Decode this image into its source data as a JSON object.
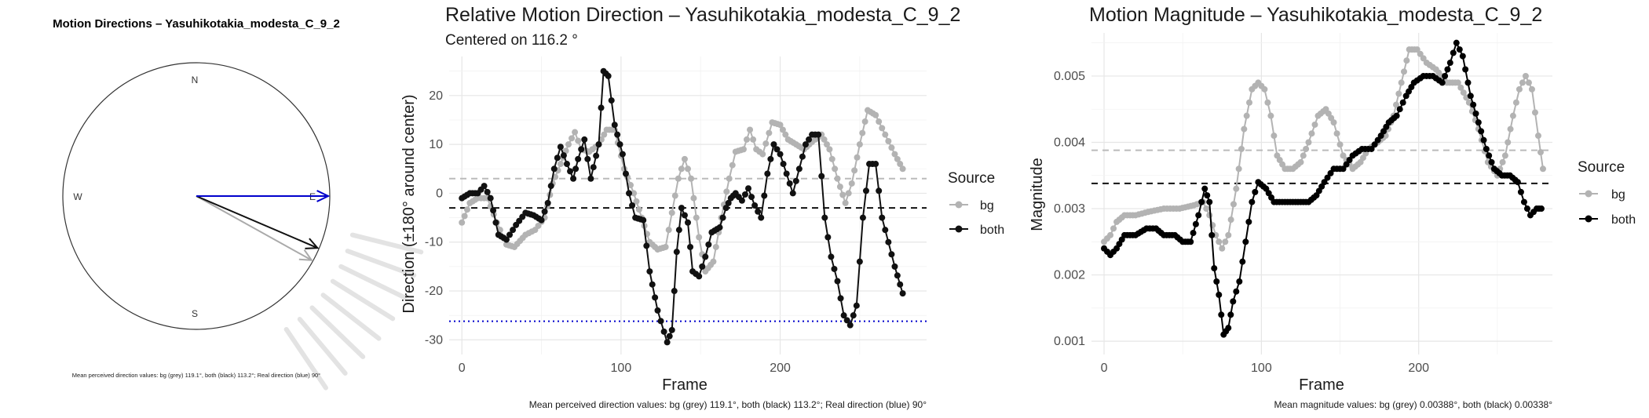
{
  "chart_data": [
    {
      "type": "compass",
      "title": "Motion Directions – Yasuhikotakia_modesta_C_9_2",
      "cardinals": [
        "N",
        "E",
        "S",
        "W"
      ],
      "arrows": [
        {
          "name": "bg",
          "angle_deg": 119.1,
          "color": "#aaaaaa"
        },
        {
          "name": "both",
          "angle_deg": 113.2,
          "color": "#111111"
        },
        {
          "name": "real",
          "angle_deg": 90,
          "color": "#0000cc"
        }
      ],
      "caption": "Mean perceived direction values: bg (grey) 119.1°, both (black) 113.2°; Real direction (blue) 90°"
    },
    {
      "type": "line",
      "title": "Relative Motion Direction – Yasuhikotakia_modesta_C_9_2",
      "subtitle": "Centered on  116.2 °",
      "xlabel": "Frame",
      "ylabel": "Direction (±180° around center)",
      "xlim": [
        -8,
        292
      ],
      "ylim": [
        -33,
        28
      ],
      "xticks": [
        0,
        100,
        200
      ],
      "yticks": [
        -30,
        -20,
        -10,
        0,
        10,
        20
      ],
      "legend_title": "Source",
      "series": [
        {
          "name": "bg",
          "color": "#b3b3b3",
          "points": [
            [
              0,
              -6
            ],
            [
              5,
              -2
            ],
            [
              10,
              -1
            ],
            [
              16,
              -1
            ],
            [
              22,
              -6
            ],
            [
              28,
              -10.5
            ],
            [
              33,
              -11
            ],
            [
              40,
              -8.5
            ],
            [
              46,
              -7.5
            ],
            [
              52,
              -5
            ],
            [
              57,
              2
            ],
            [
              62,
              6
            ],
            [
              67,
              10
            ],
            [
              71,
              12.5
            ],
            [
              75,
              9
            ],
            [
              80,
              8.5
            ],
            [
              86,
              10
            ],
            [
              91,
              13
            ],
            [
              96,
              13
            ],
            [
              102,
              5
            ],
            [
              108,
              0
            ],
            [
              113,
              -5
            ],
            [
              118,
              -10
            ],
            [
              123,
              -11.5
            ],
            [
              128,
              -11
            ],
            [
              132,
              -4
            ],
            [
              136,
              3
            ],
            [
              140,
              7
            ],
            [
              144,
              3
            ],
            [
              149,
              -9
            ],
            [
              153,
              -16
            ],
            [
              158,
              -14
            ],
            [
              163,
              -5
            ],
            [
              168,
              3
            ],
            [
              172,
              8.5
            ],
            [
              177,
              9
            ],
            [
              181,
              13
            ],
            [
              185,
              9
            ],
            [
              189,
              8
            ],
            [
              195,
              14.5
            ],
            [
              200,
              14
            ],
            [
              205,
              11
            ],
            [
              210,
              10
            ],
            [
              215,
              9
            ],
            [
              220,
              10.5
            ],
            [
              226,
              12
            ],
            [
              231,
              9
            ],
            [
              236,
              3
            ],
            [
              241,
              -2
            ],
            [
              245,
              2
            ],
            [
              250,
              10
            ],
            [
              255,
              17
            ],
            [
              260,
              16
            ],
            [
              266,
              12
            ],
            [
              272,
              8
            ],
            [
              277,
              5
            ]
          ]
        },
        {
          "name": "both",
          "color": "#111111",
          "points": [
            [
              0,
              -1
            ],
            [
              5,
              0
            ],
            [
              10,
              0
            ],
            [
              14,
              1.5
            ],
            [
              18,
              -1
            ],
            [
              23,
              -8.5
            ],
            [
              28,
              -9.5
            ],
            [
              34,
              -6.5
            ],
            [
              40,
              -4
            ],
            [
              45,
              -4.5
            ],
            [
              50,
              -5.5
            ],
            [
              54,
              -2
            ],
            [
              58,
              5
            ],
            [
              62,
              9.5
            ],
            [
              66,
              6
            ],
            [
              70,
              3
            ],
            [
              73,
              7
            ],
            [
              77,
              11
            ],
            [
              81,
              3
            ],
            [
              86,
              10
            ],
            [
              89,
              25
            ],
            [
              92,
              24
            ],
            [
              96,
              14
            ],
            [
              101,
              8
            ],
            [
              105,
              0
            ],
            [
              109,
              -5
            ],
            [
              114,
              -5.5
            ],
            [
              118,
              -16
            ],
            [
              123,
              -24
            ],
            [
              129,
              -30.5
            ],
            [
              132,
              -28
            ],
            [
              135,
              -12
            ],
            [
              138,
              -3
            ],
            [
              142,
              -6
            ],
            [
              145,
              -16
            ],
            [
              149,
              -17
            ],
            [
              153,
              -13
            ],
            [
              157,
              -8
            ],
            [
              162,
              -7
            ],
            [
              166,
              -3
            ],
            [
              169,
              -1
            ],
            [
              172,
              0
            ],
            [
              176,
              -1.5
            ],
            [
              180,
              1
            ],
            [
              184,
              -2.5
            ],
            [
              188,
              -5
            ],
            [
              192,
              4
            ],
            [
              196,
              10
            ],
            [
              200,
              8
            ],
            [
              204,
              4
            ],
            [
              208,
              0
            ],
            [
              212,
              5
            ],
            [
              216,
              10
            ],
            [
              220,
              12
            ],
            [
              224,
              12
            ],
            [
              228,
              -5
            ],
            [
              232,
              -13
            ],
            [
              236,
              -18
            ],
            [
              240,
              -25
            ],
            [
              244,
              -27
            ],
            [
              248,
              -23
            ],
            [
              252,
              -5
            ],
            [
              256,
              6
            ],
            [
              260,
              6
            ],
            [
              264,
              -5
            ],
            [
              268,
              -10
            ],
            [
              272,
              -15
            ],
            [
              277,
              -20.5
            ]
          ]
        }
      ],
      "hlines": [
        {
          "name": "bg mean",
          "y": 3,
          "color": "#bbbbbb",
          "style": "dashed"
        },
        {
          "name": "both mean",
          "y": -3,
          "color": "#111111",
          "style": "dashed"
        },
        {
          "name": "real",
          "y": -26.2,
          "color": "#0000cc",
          "style": "dotted"
        }
      ],
      "caption": "Mean perceived direction values: bg (grey) 119.1°, both (black) 113.2°; Real direction (blue) 90°"
    },
    {
      "type": "line",
      "title": "Motion Magnitude – Yasuhikotakia_modesta_C_9_2",
      "xlabel": "Frame",
      "ylabel": "Magnitude",
      "xlim": [
        -8,
        285
      ],
      "ylim": [
        0.0008,
        0.00565
      ],
      "xticks": [
        0,
        100,
        200
      ],
      "yticks": [
        0.001,
        0.002,
        0.003,
        0.004,
        0.005
      ],
      "ytick_labels": [
        "0.001",
        "0.002",
        "0.003",
        "0.004",
        "0.005"
      ],
      "legend_title": "Source",
      "series": [
        {
          "name": "bg",
          "color": "#b3b3b3",
          "points": [
            [
              0,
              0.0025
            ],
            [
              4,
              0.0026
            ],
            [
              8,
              0.0028
            ],
            [
              13,
              0.0029
            ],
            [
              20,
              0.0029
            ],
            [
              28,
              0.00295
            ],
            [
              38,
              0.003
            ],
            [
              48,
              0.003
            ],
            [
              57,
              0.00305
            ],
            [
              63,
              0.0031
            ],
            [
              67,
              0.0029
            ],
            [
              71,
              0.0026
            ],
            [
              75,
              0.0024
            ],
            [
              79,
              0.0026
            ],
            [
              84,
              0.0033
            ],
            [
              89,
              0.0042
            ],
            [
              94,
              0.0048
            ],
            [
              98,
              0.0049
            ],
            [
              102,
              0.0048
            ],
            [
              106,
              0.0044
            ],
            [
              110,
              0.0038
            ],
            [
              115,
              0.0036
            ],
            [
              120,
              0.0036
            ],
            [
              125,
              0.0037
            ],
            [
              130,
              0.004
            ],
            [
              136,
              0.0044
            ],
            [
              141,
              0.0045
            ],
            [
              146,
              0.0043
            ],
            [
              152,
              0.0038
            ],
            [
              158,
              0.0036
            ],
            [
              163,
              0.0037
            ],
            [
              168,
              0.0039
            ],
            [
              174,
              0.004
            ],
            [
              179,
              0.0041
            ],
            [
              184,
              0.0044
            ],
            [
              189,
              0.0049
            ],
            [
              194,
              0.0054
            ],
            [
              199,
              0.0054
            ],
            [
              205,
              0.0052
            ],
            [
              211,
              0.0051
            ],
            [
              218,
              0.0049
            ],
            [
              225,
              0.0049
            ],
            [
              232,
              0.0046
            ],
            [
              238,
              0.0042
            ],
            [
              244,
              0.0037
            ],
            [
              250,
              0.0035
            ],
            [
              255,
              0.0038
            ],
            [
              260,
              0.0044
            ],
            [
              264,
              0.0048
            ],
            [
              268,
              0.005
            ],
            [
              272,
              0.0048
            ],
            [
              276,
              0.0041
            ],
            [
              279,
              0.0036
            ]
          ]
        },
        {
          "name": "both",
          "color": "#000000",
          "points": [
            [
              0,
              0.0024
            ],
            [
              4,
              0.0023
            ],
            [
              8,
              0.0024
            ],
            [
              13,
              0.0026
            ],
            [
              20,
              0.0026
            ],
            [
              27,
              0.0027
            ],
            [
              33,
              0.0027
            ],
            [
              38,
              0.0026
            ],
            [
              45,
              0.0026
            ],
            [
              50,
              0.0025
            ],
            [
              55,
              0.0025
            ],
            [
              60,
              0.0029
            ],
            [
              64,
              0.0033
            ],
            [
              67,
              0.0031
            ],
            [
              70,
              0.0021
            ],
            [
              73,
              0.0017
            ],
            [
              76,
              0.0011
            ],
            [
              79,
              0.0012
            ],
            [
              82,
              0.0016
            ],
            [
              86,
              0.0019
            ],
            [
              90,
              0.0025
            ],
            [
              94,
              0.0031
            ],
            [
              98,
              0.0034
            ],
            [
              103,
              0.0033
            ],
            [
              108,
              0.0031
            ],
            [
              115,
              0.0031
            ],
            [
              120,
              0.0031
            ],
            [
              125,
              0.0031
            ],
            [
              130,
              0.0031
            ],
            [
              135,
              0.0032
            ],
            [
              140,
              0.0034
            ],
            [
              146,
              0.0036
            ],
            [
              152,
              0.0036
            ],
            [
              158,
              0.0038
            ],
            [
              164,
              0.0039
            ],
            [
              170,
              0.0039
            ],
            [
              176,
              0.0041
            ],
            [
              181,
              0.0043
            ],
            [
              186,
              0.0044
            ],
            [
              192,
              0.0047
            ],
            [
              197,
              0.0049
            ],
            [
              203,
              0.005
            ],
            [
              209,
              0.005
            ],
            [
              215,
              0.0049
            ],
            [
              220,
              0.0052
            ],
            [
              224,
              0.0055
            ],
            [
              228,
              0.0053
            ],
            [
              233,
              0.0047
            ],
            [
              238,
              0.0043
            ],
            [
              243,
              0.0039
            ],
            [
              248,
              0.0036
            ],
            [
              253,
              0.0035
            ],
            [
              258,
              0.0035
            ],
            [
              263,
              0.0034
            ],
            [
              267,
              0.0031
            ],
            [
              271,
              0.0029
            ],
            [
              275,
              0.003
            ],
            [
              278,
              0.003
            ]
          ]
        }
      ],
      "hlines": [
        {
          "name": "bg mean",
          "y": 0.00388,
          "color": "#bbbbbb",
          "style": "dashed"
        },
        {
          "name": "both mean",
          "y": 0.00338,
          "color": "#111111",
          "style": "dashed"
        }
      ],
      "caption": "Mean magnitude values: bg (grey) 0.00388°, both (black) 0.00338°"
    }
  ]
}
